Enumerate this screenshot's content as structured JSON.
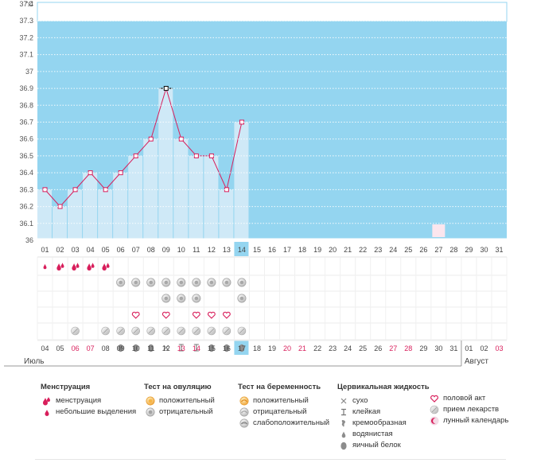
{
  "chart_data": {
    "type": "line",
    "title": "",
    "ylabel": "°C",
    "ylim": [
      36,
      37.4
    ],
    "yticks": [
      "37.4",
      "37.3",
      "37.2",
      "37.1",
      "37",
      "36.9",
      "36.8",
      "36.7",
      "36.6",
      "36.5",
      "36.4",
      "36.3",
      "36.2",
      "36.1",
      "36"
    ],
    "cycle_days": [
      "01",
      "02",
      "03",
      "04",
      "05",
      "06",
      "07",
      "08",
      "09",
      "10",
      "11",
      "12",
      "13",
      "14",
      "15",
      "16",
      "17",
      "18",
      "19",
      "20",
      "21",
      "22",
      "23",
      "24",
      "25",
      "26",
      "27",
      "28",
      "29",
      "30",
      "31"
    ],
    "current_cycle_day": "14",
    "series": [
      {
        "values": [
          36.3,
          36.2,
          36.3,
          36.4,
          36.3,
          36.4,
          36.5,
          36.6,
          36.9,
          36.6,
          36.5,
          36.5,
          36.3,
          36.7
        ]
      }
    ],
    "peak_day_index": 8,
    "moon_day_index": 26,
    "colors": {
      "line": "#d81e5b",
      "bar": "#cfe9f7",
      "bg": "#94d5f0",
      "today": "#94d5f0"
    }
  },
  "calendar": {
    "dates": [
      "04",
      "05",
      "06",
      "07",
      "08",
      "09",
      "10",
      "11",
      "12",
      "13",
      "14",
      "15",
      "16",
      "17",
      "18",
      "19",
      "20",
      "21",
      "22",
      "23",
      "24",
      "25",
      "26",
      "27",
      "28",
      "29",
      "30",
      "31",
      "01",
      "02",
      "03"
    ],
    "weekend_indices": [
      2,
      3,
      9,
      10,
      16,
      17,
      23,
      24,
      30
    ],
    "today_index": 13,
    "month1": "Июль",
    "month2": "Август",
    "month_break_index": 28
  },
  "rows": {
    "menstruation": [
      "small",
      "big",
      "big",
      "big",
      "big"
    ],
    "ovulation": [
      null,
      null,
      null,
      null,
      null,
      "neg",
      "neg",
      "neg",
      "neg",
      "neg",
      "neg",
      "neg",
      "neg",
      "neg"
    ],
    "pregnancy": [
      null,
      null,
      null,
      null,
      null,
      null,
      null,
      null,
      "neg",
      "neg",
      "neg",
      null,
      null,
      "neg"
    ],
    "sex": [
      null,
      null,
      null,
      null,
      null,
      null,
      "sex",
      null,
      "sex",
      null,
      "sex",
      "sex",
      "sex",
      null
    ],
    "pills": [
      null,
      null,
      "pill",
      null,
      "pill",
      "pill",
      "pill",
      "pill",
      "pill",
      "pill",
      "pill",
      "pill",
      "pill",
      "pill"
    ],
    "mucus": [
      null,
      null,
      null,
      null,
      null,
      "eggwhite",
      "eggwhite",
      "eggwhite",
      "dry",
      "sticky",
      "sticky",
      "eggwhite",
      "eggwhite",
      "eggwhite"
    ]
  },
  "legend": {
    "menstruation": {
      "title": "Менструация",
      "items": [
        {
          "icon": "menstruation-icon",
          "label": "менструация"
        },
        {
          "icon": "spotting-icon",
          "label": "небольшие выделения"
        }
      ]
    },
    "ovulation": {
      "title": "Тест на овуляцию",
      "items": [
        {
          "icon": "ovulation-positive-icon",
          "label": "положительный"
        },
        {
          "icon": "ovulation-negative-icon",
          "label": "отрицательный"
        }
      ]
    },
    "pregnancy": {
      "title": "Тест на беременность",
      "items": [
        {
          "icon": "pregnancy-positive-icon",
          "label": "положительный"
        },
        {
          "icon": "pregnancy-negative-icon",
          "label": "отрицательный"
        },
        {
          "icon": "pregnancy-faint-icon",
          "label": "слабоположительный"
        }
      ]
    },
    "mucus": {
      "title": "Цервикальная жидкость",
      "items": [
        {
          "icon": "dry-icon",
          "label": "сухо"
        },
        {
          "icon": "sticky-icon",
          "label": "клейкая"
        },
        {
          "icon": "creamy-icon",
          "label": "кремообразная"
        },
        {
          "icon": "watery-icon",
          "label": "водянистая"
        },
        {
          "icon": "eggwhite-icon",
          "label": "яичный белок"
        }
      ]
    },
    "other": {
      "items": [
        {
          "icon": "heart-icon",
          "label": "половой акт"
        },
        {
          "icon": "pill-icon",
          "label": "прием лекарств"
        },
        {
          "icon": "moon-icon",
          "label": "лунный календарь"
        }
      ]
    }
  }
}
